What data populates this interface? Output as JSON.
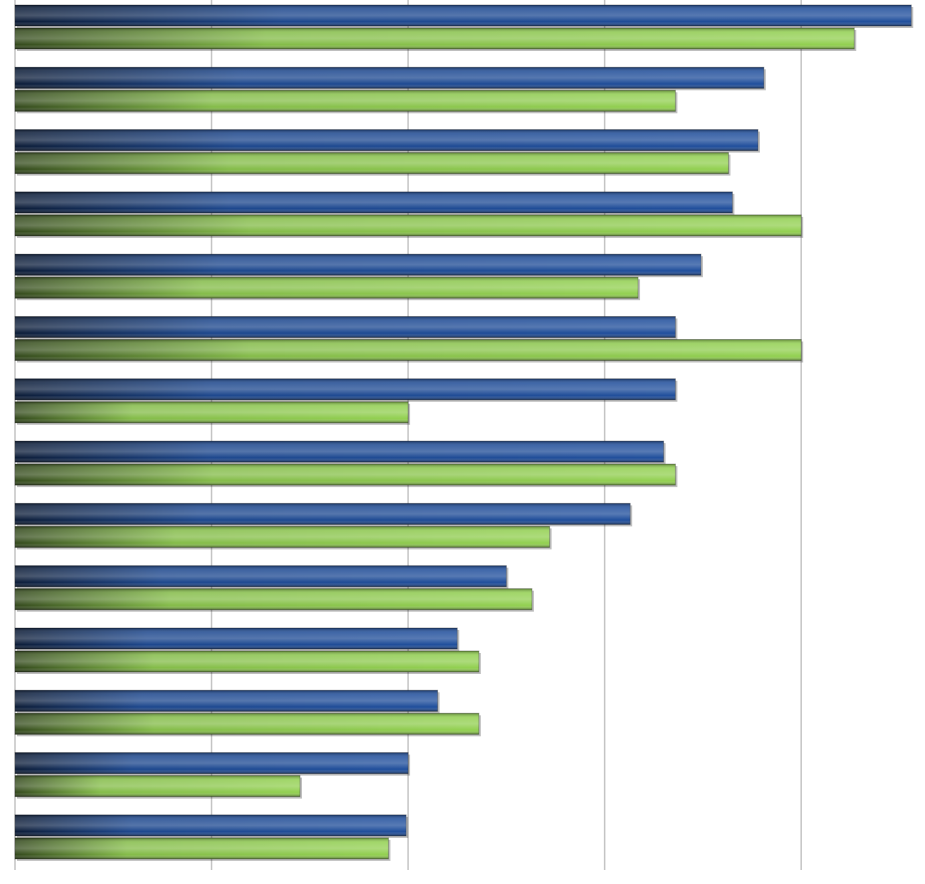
{
  "chart_data": {
    "type": "hbar",
    "categories": [
      null,
      null,
      null,
      null,
      null,
      null,
      null,
      null,
      null,
      null,
      null,
      null,
      null,
      null
    ],
    "series": [
      {
        "color": "#1f4e9c",
        "values": [
          4.56,
          3.81,
          3.78,
          3.65,
          3.49,
          3.36,
          3.36,
          3.3,
          3.13,
          2.5,
          2.25,
          2.15,
          2.0,
          1.99
        ]
      },
      {
        "color": "#92d050",
        "values": [
          4.27,
          3.36,
          3.63,
          4.0,
          3.17,
          4.0,
          2.0,
          3.36,
          2.72,
          2.63,
          2.36,
          2.36,
          1.45,
          1.9
        ]
      }
    ],
    "xlim": [
      0,
      4.63
    ],
    "xticks": [
      0,
      1,
      2,
      3,
      4
    ],
    "grid": true
  }
}
